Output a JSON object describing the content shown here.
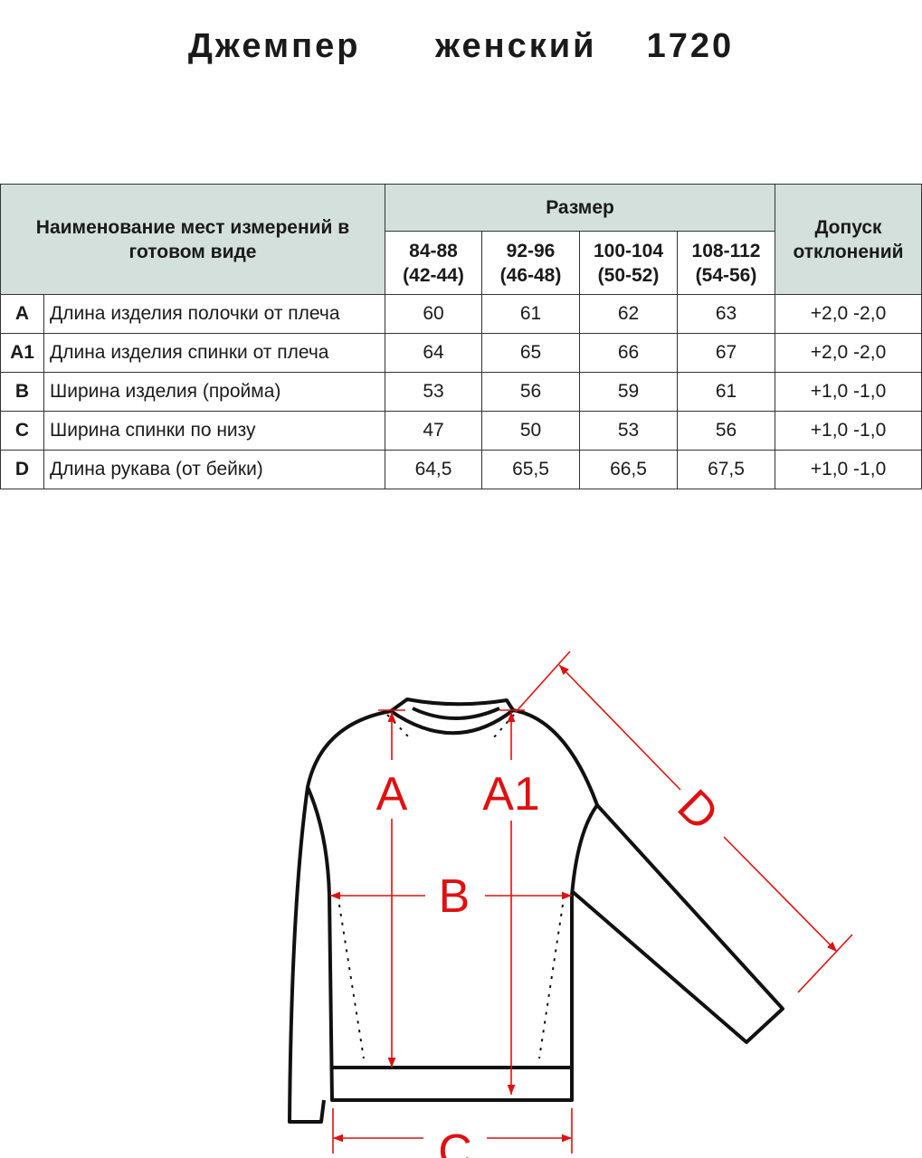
{
  "title": "Джемпер   женский  1720",
  "table": {
    "header_name": "Наименование мест измерений в готовом виде",
    "header_size": "Размер",
    "header_tolerance": "Допуск отклонений",
    "sizes": [
      {
        "main": "84-88",
        "alt": "(42-44)"
      },
      {
        "main": "92-96",
        "alt": "(46-48)"
      },
      {
        "main": "100-104",
        "alt": "(50-52)"
      },
      {
        "main": "108-112",
        "alt": "(54-56)"
      }
    ],
    "rows": [
      {
        "code": "A",
        "name": "Длина изделия полочки от плеча",
        "values": [
          "60",
          "61",
          "62",
          "63"
        ],
        "tolerance": "+2,0 -2,0"
      },
      {
        "code": "A1",
        "name": "Длина изделия спинки от плеча",
        "values": [
          "64",
          "65",
          "66",
          "67"
        ],
        "tolerance": "+2,0 -2,0"
      },
      {
        "code": "B",
        "name": "Ширина изделия (пройма)",
        "values": [
          "53",
          "56",
          "59",
          "61"
        ],
        "tolerance": "+1,0 -1,0"
      },
      {
        "code": "C",
        "name": "Ширина спинки по низу",
        "values": [
          "47",
          "50",
          "53",
          "56"
        ],
        "tolerance": "+1,0 -1,0"
      },
      {
        "code": "D",
        "name": "Длина рукава (от бейки)",
        "values": [
          "64,5",
          "65,5",
          "66,5",
          "67,5"
        ],
        "tolerance": "+1,0 -1,0"
      }
    ]
  },
  "diagram": {
    "labels": {
      "a": "A",
      "a1": "A1",
      "b": "B",
      "c": "C",
      "d": "D"
    },
    "colors": {
      "outline": "#111111",
      "measure": "#e01010",
      "header_bg": "#d4e0dc"
    }
  }
}
